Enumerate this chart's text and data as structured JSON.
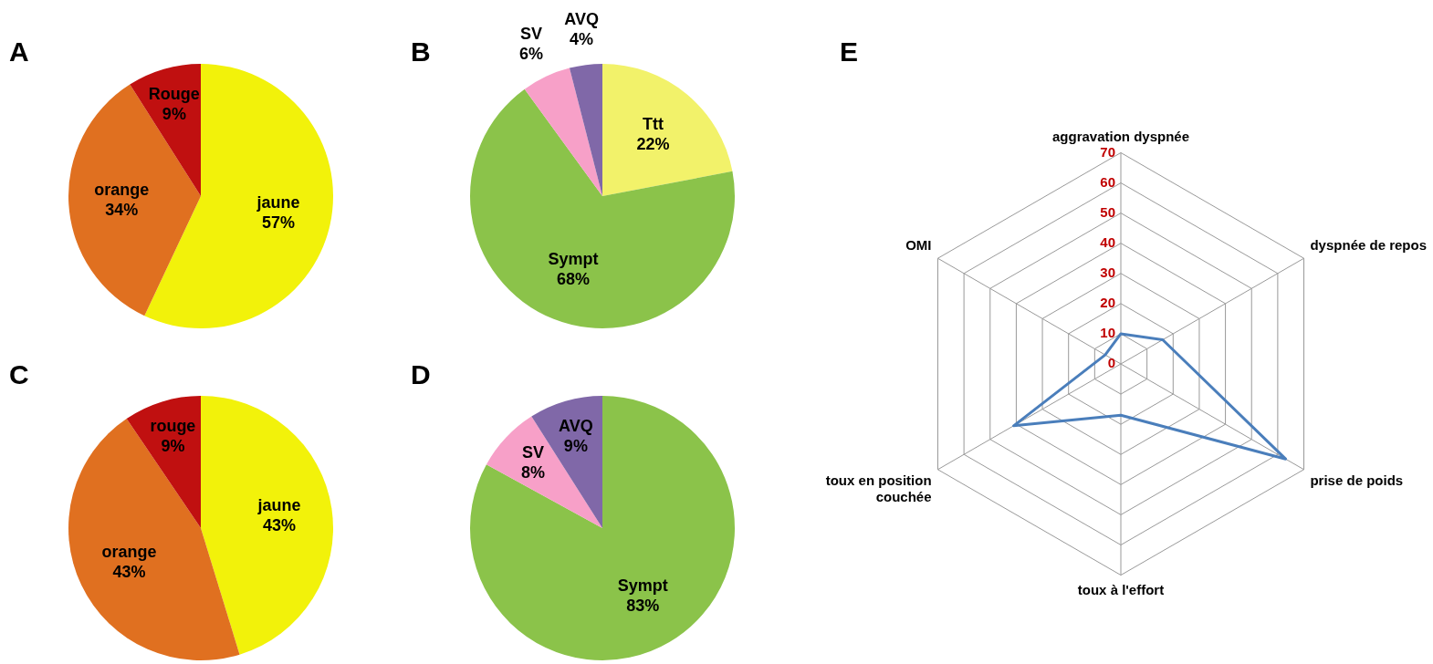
{
  "chart_data": [
    {
      "type": "pie",
      "title": "A",
      "categories": [
        "jaune",
        "orange",
        "Rouge"
      ],
      "values": [
        57,
        34,
        9
      ],
      "value_labels": [
        "57%",
        "34%",
        "9%"
      ],
      "colors": [
        "#f2f20a",
        "#e07020",
        "#c01010"
      ],
      "legend": false
    },
    {
      "type": "pie",
      "title": "B",
      "categories": [
        "Ttt",
        "Sympt",
        "SV",
        "AVQ"
      ],
      "values": [
        22,
        68,
        6,
        4
      ],
      "value_labels": [
        "22%",
        "68%",
        "6%",
        "4%"
      ],
      "colors": [
        "#f2f26a",
        "#8bc34a",
        "#f7a0c8",
        "#8068a8"
      ],
      "legend": false
    },
    {
      "type": "pie",
      "title": "C",
      "categories": [
        "jaune",
        "orange",
        "rouge"
      ],
      "values": [
        43,
        43,
        9
      ],
      "value_labels": [
        "43%",
        "43%",
        "9%"
      ],
      "colors": [
        "#f2f20a",
        "#e07020",
        "#c01010"
      ],
      "legend": false
    },
    {
      "type": "pie",
      "title": "D",
      "categories": [
        "Sympt",
        "SV",
        "AVQ"
      ],
      "values": [
        83,
        8,
        9
      ],
      "value_labels": [
        "83%",
        "8%",
        "9%"
      ],
      "colors": [
        "#8bc34a",
        "#f7a0c8",
        "#8068a8"
      ],
      "legend": false
    },
    {
      "type": "radar",
      "title": "E",
      "categories": [
        "aggravation dyspnée",
        "dyspnée de repos",
        "prise de poids",
        "toux à l'effort",
        "toux en position couchée",
        "OMI"
      ],
      "ylim": [
        0,
        70
      ],
      "yticks": [
        0,
        10,
        20,
        30,
        40,
        50,
        60,
        70
      ],
      "grid": true,
      "legend": false,
      "marker": "none",
      "series": [
        {
          "color": "#4a7ebb",
          "values": [
            10,
            16,
            63,
            17,
            41,
            6
          ]
        }
      ]
    }
  ]
}
